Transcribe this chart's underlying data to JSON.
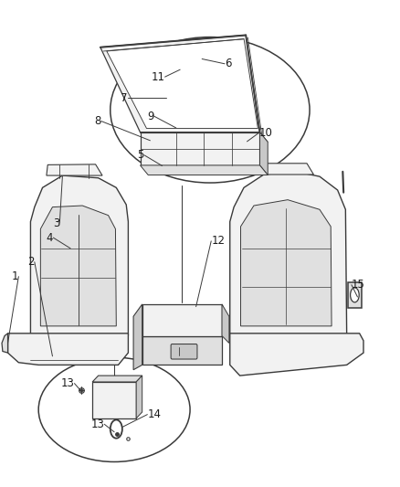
{
  "background_color": "#ffffff",
  "line_color": "#3a3a3a",
  "fill_light": "#f2f2f2",
  "fill_mid": "#e0e0e0",
  "fill_dark": "#c8c8c8",
  "text_color": "#1a1a1a",
  "font_size": 8.5,
  "figsize": [
    4.38,
    5.33
  ],
  "dpi": 100
}
